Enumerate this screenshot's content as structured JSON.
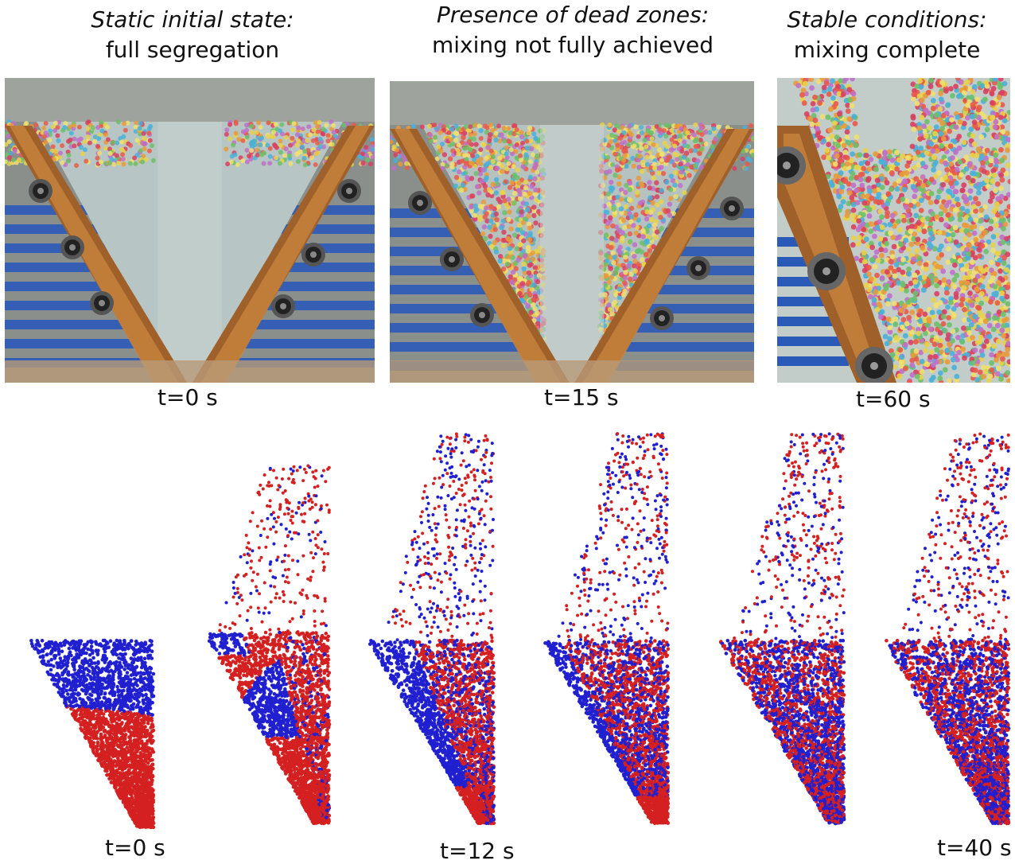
{
  "photos": {
    "panels": [
      {
        "id": "p0",
        "caption_title": "Static initial state:",
        "caption_sub": "full segregation",
        "time_label": "t=0 s"
      },
      {
        "id": "p1",
        "caption_title": "Presence of dead zones:",
        "caption_sub": "mixing not fully achieved",
        "time_label": "t=15 s"
      },
      {
        "id": "p2",
        "caption_title": "Stable conditions:",
        "caption_sub": "mixing complete",
        "time_label": "t=60 s"
      }
    ]
  },
  "simulation": {
    "time_labels": [
      "t=0 s",
      "t=12 s",
      "t=40 s"
    ],
    "colors": {
      "particle_a": "#2020d0",
      "particle_b": "#d42020"
    }
  }
}
